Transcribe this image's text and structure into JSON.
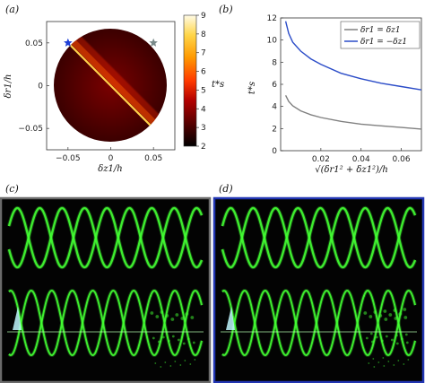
{
  "chart_data": [
    {
      "panel": "(a)",
      "type": "heatmap",
      "xlabel": "δz1/h",
      "ylabel": "δr1/h",
      "xlim": [
        -0.075,
        0.075
      ],
      "ylim": [
        -0.075,
        0.075
      ],
      "xticks": [
        -0.05,
        0,
        0.05
      ],
      "yticks": [
        0.05,
        0,
        -0.05
      ],
      "tick_labels_x": [
        "−0.05",
        "0",
        "0.05"
      ],
      "tick_labels_y": [
        "0.05",
        "0",
        "−0.05"
      ],
      "domain_radius": 0.075,
      "ridge": {
        "x": [
          -0.075,
          0.055
        ],
        "y": [
          0.075,
          -0.055
        ]
      },
      "markers": [
        {
          "name": "blue-star",
          "x": -0.05,
          "y": 0.05,
          "color": "#1f3fd6"
        },
        {
          "name": "grey-star",
          "x": 0.05,
          "y": 0.05,
          "color": "#7a8a8a"
        }
      ],
      "colorbar": {
        "label": "t*s",
        "min": 2,
        "max": 9,
        "ticks": [
          "9",
          "8",
          "7",
          "6",
          "5",
          "4",
          "3",
          "2"
        ]
      },
      "colormap": [
        "#000000",
        "#4a0000",
        "#b30000",
        "#ff3a00",
        "#ff9a00",
        "#ffd64a",
        "#fffbe6"
      ]
    },
    {
      "panel": "(b)",
      "type": "line",
      "xlabel": "√(δr1² + δz1²)/h",
      "ylabel": "t*s",
      "xlim": [
        0,
        0.07
      ],
      "ylim": [
        0,
        12
      ],
      "xticks": [
        0.02,
        0.04,
        0.06
      ],
      "yticks": [
        0,
        2,
        4,
        6,
        8,
        10,
        12
      ],
      "tick_labels_x": [
        "0.02",
        "0.04",
        "0.06"
      ],
      "tick_labels_y": [
        "0",
        "2",
        "4",
        "6",
        "8",
        "10",
        "12"
      ],
      "legend": "top-right",
      "series": [
        {
          "name": "δr1 = δz1",
          "color": "#808080",
          "x": [
            0.0025,
            0.004,
            0.006,
            0.01,
            0.015,
            0.02,
            0.03,
            0.04,
            0.05,
            0.06,
            0.07
          ],
          "y": [
            5.0,
            4.45,
            4.05,
            3.6,
            3.25,
            3.0,
            2.65,
            2.4,
            2.25,
            2.1,
            1.95
          ]
        },
        {
          "name": "δr1 = −δz1",
          "color": "#2b4cc8",
          "x": [
            0.0025,
            0.004,
            0.006,
            0.01,
            0.015,
            0.02,
            0.03,
            0.04,
            0.05,
            0.06,
            0.07
          ],
          "y": [
            11.7,
            10.6,
            9.8,
            9.0,
            8.3,
            7.8,
            7.0,
            6.5,
            6.1,
            5.8,
            5.5
          ]
        }
      ]
    }
  ],
  "panels": {
    "a": "(a)",
    "b": "(b)",
    "c": "(c)",
    "d": "(d)"
  },
  "photos": {
    "c_frame_color": "#6b6b6b",
    "d_frame_color": "#2236b3",
    "helix_color": "#44ff33"
  }
}
